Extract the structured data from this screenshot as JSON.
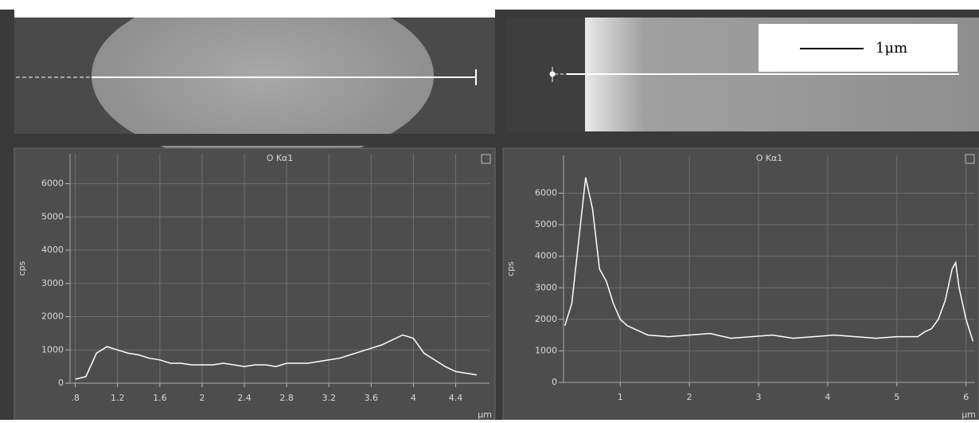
{
  "scale_bar_label": "1μm",
  "chart_data": [
    {
      "type": "line",
      "title": "O Kα1",
      "y_label": "cps",
      "x_label": "μm",
      "x": [
        0.8,
        0.9,
        1.0,
        1.1,
        1.2,
        1.3,
        1.4,
        1.5,
        1.6,
        1.7,
        1.8,
        1.9,
        2.0,
        2.1,
        2.2,
        2.3,
        2.4,
        2.5,
        2.6,
        2.7,
        2.8,
        2.9,
        3.0,
        3.1,
        3.2,
        3.3,
        3.4,
        3.5,
        3.6,
        3.7,
        3.8,
        3.9,
        4.0,
        4.1,
        4.2,
        4.3,
        4.4,
        4.5,
        4.6
      ],
      "series": [
        {
          "name": "O Kα1",
          "color": "#ffffff",
          "values": [
            120,
            200,
            900,
            1100,
            1000,
            900,
            850,
            750,
            700,
            600,
            600,
            550,
            550,
            550,
            600,
            550,
            500,
            550,
            550,
            500,
            600,
            600,
            600,
            650,
            700,
            750,
            850,
            950,
            1050,
            1150,
            1300,
            1450,
            1350,
            900,
            700,
            500,
            350,
            300,
            250
          ]
        }
      ],
      "xlim": [
        0.75,
        4.72
      ],
      "ylim": [
        0,
        6900
      ],
      "xticks": [
        {
          "value": 0.8,
          "label": ".8"
        },
        1.2,
        1.6,
        2,
        2.4,
        2.8,
        3.2,
        3.6,
        4,
        4.4
      ],
      "yticks": [
        0,
        1000,
        2000,
        3000,
        4000,
        5000,
        6000
      ],
      "grid": true
    },
    {
      "type": "line",
      "title": "O Kα1",
      "y_label": "cps",
      "x_label": "μm",
      "x": [
        0.2,
        0.3,
        0.4,
        0.5,
        0.55,
        0.6,
        0.7,
        0.8,
        0.9,
        1.0,
        1.1,
        1.2,
        1.3,
        1.4,
        1.7,
        2.0,
        2.3,
        2.6,
        2.9,
        3.2,
        3.5,
        3.8,
        4.1,
        4.4,
        4.7,
        5.0,
        5.3,
        5.4,
        5.5,
        5.6,
        5.7,
        5.8,
        5.85,
        5.9,
        6.0,
        6.1
      ],
      "series": [
        {
          "name": "O Kα1",
          "color": "#ffffff",
          "values": [
            1800,
            2500,
            4500,
            6500,
            6000,
            5500,
            3600,
            3200,
            2500,
            2000,
            1800,
            1700,
            1600,
            1500,
            1450,
            1500,
            1550,
            1400,
            1450,
            1500,
            1400,
            1450,
            1500,
            1450,
            1400,
            1450,
            1450,
            1600,
            1700,
            2000,
            2600,
            3600,
            3800,
            3000,
            2000,
            1300
          ]
        }
      ],
      "xlim": [
        0.18,
        6.13
      ],
      "ylim": [
        0,
        7200
      ],
      "xticks": [
        1,
        2,
        3,
        4,
        5,
        6
      ],
      "yticks": [
        0,
        1000,
        2000,
        3000,
        4000,
        5000,
        6000
      ],
      "grid": true
    }
  ]
}
